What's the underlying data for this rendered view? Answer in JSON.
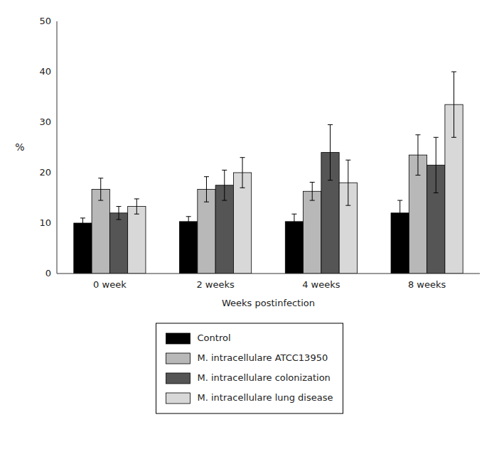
{
  "chart_data": {
    "type": "bar",
    "xlabel": "Weeks postinfection",
    "ylabel": "%",
    "categories": [
      "0 week",
      "2 weeks",
      "4 weeks",
      "8 weeks"
    ],
    "series": [
      {
        "name": "Control",
        "color": "#000000",
        "values": [
          10.0,
          10.3,
          10.3,
          12.0
        ],
        "errors": [
          1.0,
          1.0,
          1.5,
          2.5
        ]
      },
      {
        "name": "M. intracellulare ATCC13950",
        "color": "#b8b8b8",
        "values": [
          16.7,
          16.7,
          16.3,
          23.5
        ],
        "errors": [
          2.2,
          2.5,
          1.8,
          4.0
        ]
      },
      {
        "name": "M. intracellulare colonization",
        "color": "#555555",
        "values": [
          12.0,
          17.5,
          24.0,
          21.5
        ],
        "errors": [
          1.3,
          3.0,
          5.5,
          5.5
        ]
      },
      {
        "name": "M. intracellulare lung disease",
        "color": "#d8d8d8",
        "values": [
          13.3,
          20.0,
          18.0,
          33.5
        ],
        "errors": [
          1.5,
          3.0,
          4.5,
          6.5
        ]
      }
    ],
    "ylim": [
      0,
      50
    ],
    "yticks": [
      0,
      10,
      20,
      30,
      40,
      50
    ],
    "grid": false,
    "legend": "bottom"
  }
}
